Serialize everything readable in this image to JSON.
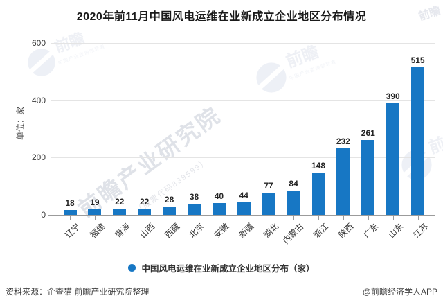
{
  "chart_data": {
    "type": "bar",
    "title": "2020年前11月中国风电运维在业新成立企业地区分布情况",
    "categories": [
      "辽宁",
      "福建",
      "青海",
      "山西",
      "西藏",
      "北京",
      "安徽",
      "新疆",
      "湖北",
      "内蒙古",
      "浙江",
      "陕西",
      "广东",
      "山东",
      "江苏"
    ],
    "values": [
      18,
      19,
      22,
      22,
      28,
      38,
      40,
      44,
      77,
      84,
      148,
      232,
      261,
      390,
      515
    ],
    "xlabel": "",
    "ylabel": "单位：家",
    "ylim": [
      0,
      600
    ],
    "yticks": [
      0,
      200,
      400,
      600
    ],
    "grid": true,
    "legend_label": "中国风电运维在业新成立企业地区分布（家）",
    "legend_position": "bottom"
  },
  "colors": {
    "bar": "#1777C4",
    "grid": "#e4e4e4",
    "axis": "#9b9b9b"
  },
  "footer": {
    "source": "资料来源：企查猫 前瞻产业研究院整理",
    "credit": "@前瞻经济学人APP"
  },
  "watermark": {
    "logo_text": "前瞻",
    "tagline": "中国产业咨询领导者",
    "diagonal": "前瞻产业研究院",
    "diagonal_sub": "（股票代码839599）"
  }
}
